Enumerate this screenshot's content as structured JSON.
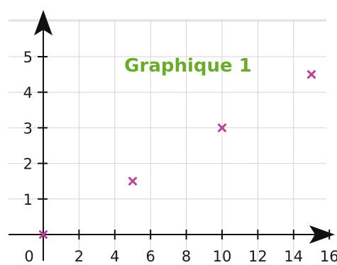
{
  "chart_data": {
    "type": "scatter",
    "title": "Graphique 1",
    "xlabel": "",
    "ylabel": "",
    "x": [
      0,
      5,
      10,
      15
    ],
    "y": [
      0,
      1.5,
      3,
      4.5
    ],
    "xlim": [
      0,
      16
    ],
    "ylim": [
      0,
      5
    ],
    "x_ticks": [
      "0",
      "2",
      "4",
      "6",
      "8",
      "10",
      "12",
      "14",
      "16"
    ],
    "y_ticks": [
      "1",
      "2",
      "3",
      "4",
      "5"
    ],
    "x_tick_values": [
      0,
      2,
      4,
      6,
      8,
      10,
      12,
      14,
      16
    ],
    "y_tick_values": [
      1,
      2,
      3,
      4,
      5
    ],
    "grid": true,
    "marker": "x",
    "colors": {
      "title": "#6aab2a",
      "marker": "#b8449a",
      "grid": "#d4d4d4",
      "axis": "#111111"
    }
  }
}
